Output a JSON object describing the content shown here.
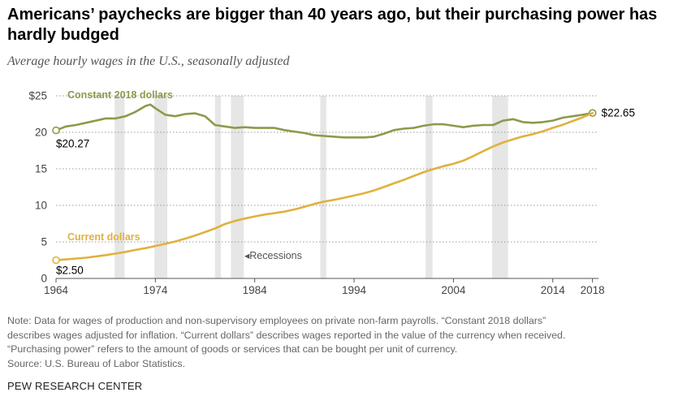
{
  "header": {
    "title": "Americans’ paychecks are bigger than 40 years ago, but their purchasing power has hardly budged",
    "subtitle": "Average hourly wages in the U.S., seasonally adjusted"
  },
  "chart_data": {
    "type": "line",
    "xlim": [
      1964,
      2018.6
    ],
    "ylim": [
      0,
      25
    ],
    "x_ticks": [
      1964,
      1974,
      1984,
      1994,
      2004,
      2014,
      2018
    ],
    "y_ticks": [
      {
        "value": 0,
        "label": "0"
      },
      {
        "value": 5,
        "label": "5"
      },
      {
        "value": 10,
        "label": "10"
      },
      {
        "value": 15,
        "label": "15"
      },
      {
        "value": 20,
        "label": "20"
      },
      {
        "value": 25,
        "label": "$25"
      }
    ],
    "grid": "horizontal dotted",
    "recessions": [
      [
        1969.9,
        1970.9
      ],
      [
        1973.9,
        1975.2
      ],
      [
        1980.0,
        1980.6
      ],
      [
        1981.6,
        1982.9
      ],
      [
        1990.6,
        1991.2
      ],
      [
        2001.2,
        2001.9
      ],
      [
        2007.9,
        2009.5
      ]
    ],
    "recessions_label": "Recessions",
    "series": [
      {
        "name": "Constant 2018 dollars",
        "color": "#8c9a4a",
        "points": [
          [
            1964,
            20.27
          ],
          [
            1965,
            20.8
          ],
          [
            1966,
            21.0
          ],
          [
            1967,
            21.3
          ],
          [
            1968,
            21.6
          ],
          [
            1969,
            21.9
          ],
          [
            1970,
            21.9
          ],
          [
            1971,
            22.2
          ],
          [
            1972,
            22.8
          ],
          [
            1973,
            23.6
          ],
          [
            1973.5,
            23.8
          ],
          [
            1974,
            23.3
          ],
          [
            1975,
            22.4
          ],
          [
            1976,
            22.2
          ],
          [
            1977,
            22.5
          ],
          [
            1978,
            22.6
          ],
          [
            1979,
            22.2
          ],
          [
            1980,
            21.0
          ],
          [
            1981,
            20.8
          ],
          [
            1982,
            20.6
          ],
          [
            1983,
            20.7
          ],
          [
            1984,
            20.6
          ],
          [
            1985,
            20.6
          ],
          [
            1986,
            20.6
          ],
          [
            1987,
            20.3
          ],
          [
            1988,
            20.1
          ],
          [
            1989,
            19.9
          ],
          [
            1990,
            19.6
          ],
          [
            1991,
            19.5
          ],
          [
            1992,
            19.4
          ],
          [
            1993,
            19.3
          ],
          [
            1994,
            19.3
          ],
          [
            1995,
            19.3
          ],
          [
            1996,
            19.4
          ],
          [
            1997,
            19.8
          ],
          [
            1998,
            20.3
          ],
          [
            1999,
            20.5
          ],
          [
            2000,
            20.6
          ],
          [
            2001,
            20.9
          ],
          [
            2002,
            21.1
          ],
          [
            2003,
            21.1
          ],
          [
            2004,
            20.9
          ],
          [
            2005,
            20.7
          ],
          [
            2006,
            20.9
          ],
          [
            2007,
            21.0
          ],
          [
            2008,
            21.0
          ],
          [
            2009,
            21.6
          ],
          [
            2010,
            21.8
          ],
          [
            2011,
            21.4
          ],
          [
            2012,
            21.3
          ],
          [
            2013,
            21.4
          ],
          [
            2014,
            21.6
          ],
          [
            2015,
            22.0
          ],
          [
            2016,
            22.2
          ],
          [
            2017,
            22.4
          ],
          [
            2018,
            22.65
          ]
        ],
        "start_label": "$20.27",
        "end_label": "$22.65"
      },
      {
        "name": "Current dollars",
        "color": "#e0b13e",
        "points": [
          [
            1964,
            2.5
          ],
          [
            1965,
            2.6
          ],
          [
            1966,
            2.72
          ],
          [
            1967,
            2.83
          ],
          [
            1968,
            3.01
          ],
          [
            1969,
            3.19
          ],
          [
            1970,
            3.4
          ],
          [
            1971,
            3.63
          ],
          [
            1972,
            3.9
          ],
          [
            1973,
            4.14
          ],
          [
            1974,
            4.43
          ],
          [
            1975,
            4.73
          ],
          [
            1976,
            5.06
          ],
          [
            1977,
            5.44
          ],
          [
            1978,
            5.88
          ],
          [
            1979,
            6.34
          ],
          [
            1980,
            6.85
          ],
          [
            1981,
            7.44
          ],
          [
            1982,
            7.87
          ],
          [
            1983,
            8.2
          ],
          [
            1984,
            8.49
          ],
          [
            1985,
            8.74
          ],
          [
            1986,
            8.93
          ],
          [
            1987,
            9.14
          ],
          [
            1988,
            9.44
          ],
          [
            1989,
            9.8
          ],
          [
            1990,
            10.2
          ],
          [
            1991,
            10.52
          ],
          [
            1992,
            10.77
          ],
          [
            1993,
            11.05
          ],
          [
            1994,
            11.34
          ],
          [
            1995,
            11.65
          ],
          [
            1996,
            12.04
          ],
          [
            1997,
            12.51
          ],
          [
            1998,
            13.01
          ],
          [
            1999,
            13.49
          ],
          [
            2000,
            14.02
          ],
          [
            2001,
            14.54
          ],
          [
            2002,
            14.97
          ],
          [
            2003,
            15.37
          ],
          [
            2004,
            15.69
          ],
          [
            2005,
            16.12
          ],
          [
            2006,
            16.75
          ],
          [
            2007,
            17.42
          ],
          [
            2008,
            18.07
          ],
          [
            2009,
            18.61
          ],
          [
            2010,
            19.05
          ],
          [
            2011,
            19.44
          ],
          [
            2012,
            19.74
          ],
          [
            2013,
            20.13
          ],
          [
            2014,
            20.61
          ],
          [
            2015,
            21.03
          ],
          [
            2016,
            21.54
          ],
          [
            2017,
            22.05
          ],
          [
            2018,
            22.65
          ]
        ],
        "start_label": "$2.50"
      }
    ]
  },
  "footer": {
    "note_lines": [
      "Note: Data for wages of production and non-supervisory employees on private non-farm payrolls. “Constant 2018 dollars”",
      "describes wages adjusted for inflation. “Current dollars” describes wages reported in the value of the currency when received.",
      "“Purchasing power” refers to the amount of goods or services that can be bought per unit of currency.",
      "Source: U.S. Bureau of Labor Statistics."
    ],
    "brand": "PEW RESEARCH CENTER"
  }
}
